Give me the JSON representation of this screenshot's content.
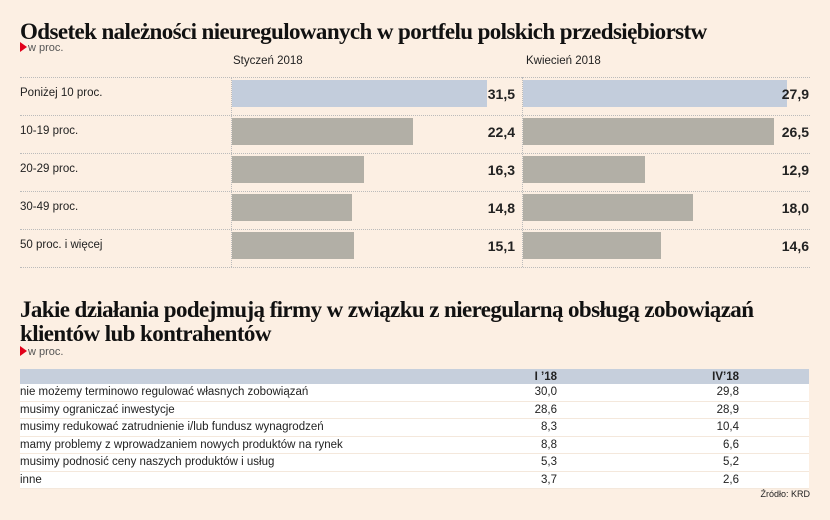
{
  "header": {
    "title": "Odsetek należności nieuregulowanych w portfelu polskich przedsiębiorstw",
    "unit": "w proc."
  },
  "chart_data": [
    {
      "type": "bar",
      "orientation": "horizontal",
      "title": "Styczeń 2018",
      "categories": [
        "Poniżej 10 proc.",
        "10-19 proc.",
        "20-29 proc.",
        "30-49 proc.",
        "50 proc. i więcej"
      ],
      "values": [
        31.5,
        22.4,
        16.3,
        14.8,
        15.1
      ],
      "labels": [
        "31,5",
        "22,4",
        "16,3",
        "14,8",
        "15,1"
      ],
      "colors": [
        "#c3cddc",
        "#b2afa6",
        "#b2afa6",
        "#b2afa6",
        "#b2afa6"
      ]
    },
    {
      "type": "bar",
      "orientation": "horizontal",
      "title": "Kwiecień 2018",
      "categories": [
        "Poniżej 10 proc.",
        "10-19 proc.",
        "20-29 proc.",
        "30-49 proc.",
        "50 proc. i więcej"
      ],
      "values": [
        27.9,
        26.5,
        12.9,
        18.0,
        14.6
      ],
      "labels": [
        "27,9",
        "26,5",
        "12,9",
        "18,0",
        "14,6"
      ],
      "colors": [
        "#c3cddc",
        "#b2afa6",
        "#b2afa6",
        "#b2afa6",
        "#b2afa6"
      ]
    },
    {
      "type": "table",
      "title": "Jakie działania podejmują firmy w związku z nieregularną obsługą zobowiązań klientów lub kontrahentów",
      "unit": "w proc.",
      "columns": [
        "",
        "I ’18",
        "IV’18"
      ],
      "rows": [
        [
          "nie możemy terminowo regulować własnych zobowiązań",
          "30,0",
          "29,8"
        ],
        [
          "musimy ograniczać inwestycje",
          "28,6",
          "28,9"
        ],
        [
          "musimy redukować zatrudnienie i/lub fundusz wynagrodzeń",
          "8,3",
          "10,4"
        ],
        [
          "mamy problemy z wprowadzaniem nowych produktów na rynek",
          "8,8",
          "6,6"
        ],
        [
          "musimy podnosić ceny naszych produktów i usług",
          "5,3",
          "5,2"
        ],
        [
          "inne",
          "3,7",
          "2,6"
        ]
      ]
    }
  ],
  "source": "Źródło: KRD"
}
